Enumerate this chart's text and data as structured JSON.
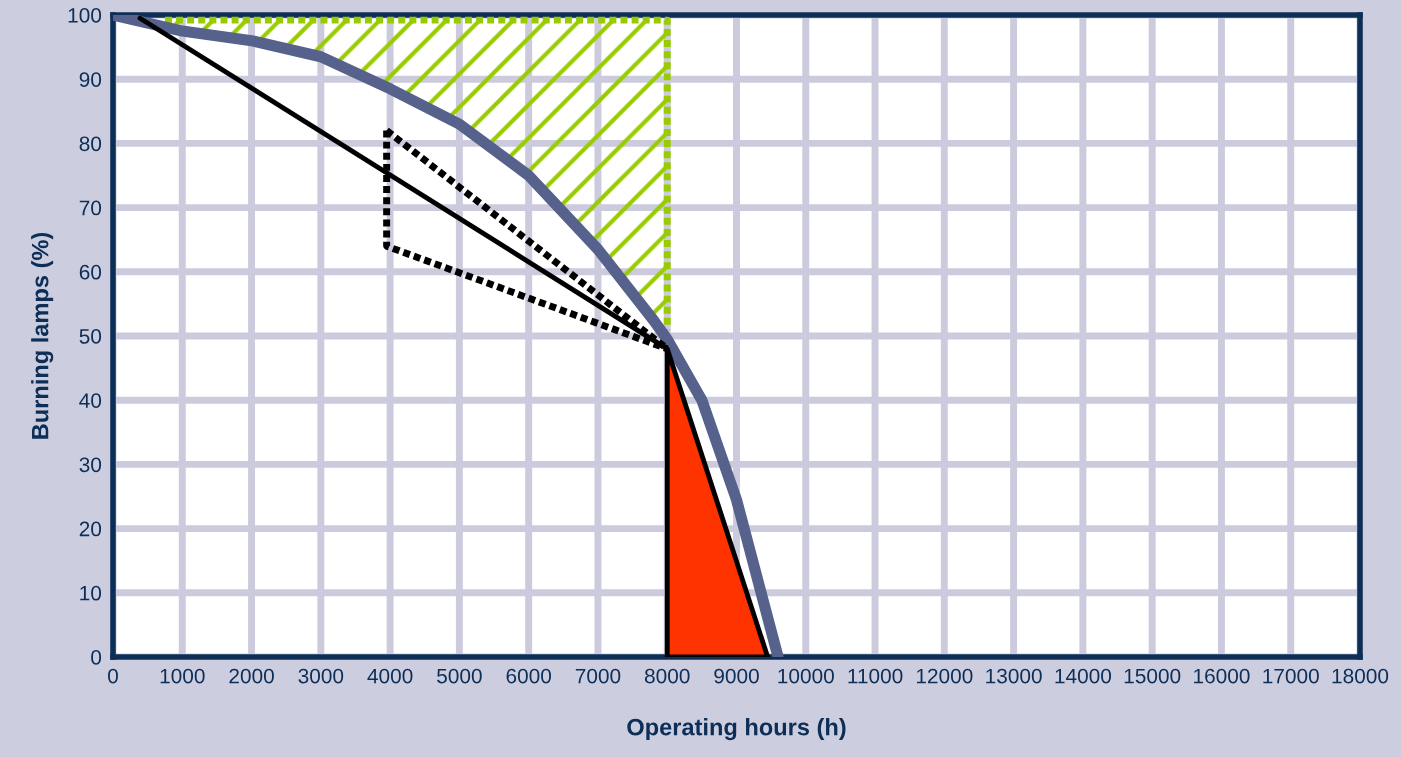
{
  "chart_data": {
    "type": "line",
    "xlabel": "Operating hours (h)",
    "ylabel": "Burning lamps (%)",
    "xlim": [
      0,
      18000
    ],
    "xticks": [
      0,
      1000,
      2000,
      3000,
      4000,
      5000,
      6000,
      7000,
      8000,
      9000,
      10000,
      11000,
      12000,
      13000,
      14000,
      15000,
      16000,
      17000,
      18000
    ],
    "ylim": [
      0,
      100
    ],
    "yticks": [
      0,
      10,
      20,
      30,
      40,
      50,
      60,
      70,
      80,
      90,
      100
    ],
    "grid": true,
    "series": [
      {
        "color": "#99cc00",
        "line_style": "dotted",
        "x": [
          750,
          8000,
          8000
        ],
        "values": [
          99.2,
          99.2,
          51
        ]
      },
      {
        "type": "area",
        "color": "#ff3300",
        "x": [
          8000,
          8000,
          9450
        ],
        "values": [
          0,
          48,
          0
        ]
      },
      {
        "color": "#56618c",
        "line_style": "solid",
        "x": [
          0,
          1000,
          2000,
          3000,
          4000,
          5000,
          6000,
          7000,
          7800,
          8000,
          8500,
          9000,
          9600
        ],
        "values": [
          100,
          97.5,
          96,
          93.5,
          88.5,
          83,
          75,
          63.5,
          52.5,
          49.5,
          40,
          24.5,
          0
        ]
      },
      {
        "color": "#000000",
        "line_style": "solid",
        "x": [
          390,
          8000,
          9450,
          8000,
          8000
        ],
        "values": [
          99.5,
          48,
          0,
          0,
          48
        ]
      },
      {
        "color": "#000000",
        "line_style": "dotted",
        "x": [
          3950,
          8000
        ],
        "values": [
          82,
          48
        ]
      },
      {
        "color": "#000000",
        "line_style": "dotted",
        "x": [
          3950,
          3950,
          8000
        ],
        "values": [
          82,
          64,
          48
        ]
      }
    ]
  }
}
